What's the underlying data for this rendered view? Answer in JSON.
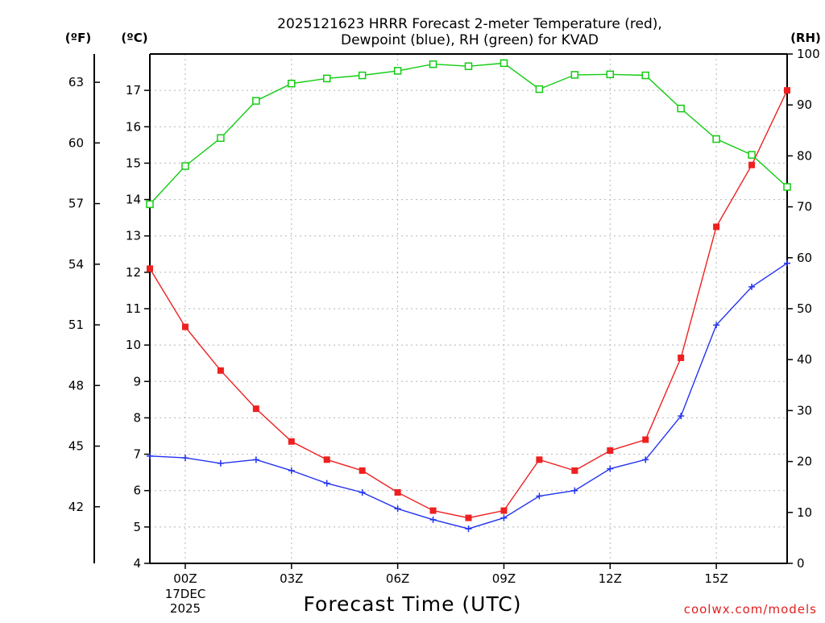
{
  "chart_data": {
    "type": "line",
    "title_line1": "2025121623 HRRR Forecast 2-meter Temperature (red),",
    "title_line2": "Dewpoint (blue), RH (green) for KVAD",
    "xlabel": "Forecast Time (UTC)",
    "credit": "coolwx.com/models",
    "unit_labels": {
      "fahrenheit": "(ºF)",
      "celsius": "(ºC)",
      "rh": "(RH)"
    },
    "date_labels": [
      "17DEC",
      "2025"
    ],
    "x": [
      -1,
      0,
      1,
      2,
      3,
      4,
      5,
      6,
      7,
      8,
      9,
      10,
      11,
      12,
      13,
      14,
      15,
      16,
      17
    ],
    "xlim": [
      -1,
      17
    ],
    "x_ticks": [
      {
        "value": 0,
        "label": "00Z"
      },
      {
        "value": 3,
        "label": "03Z"
      },
      {
        "value": 6,
        "label": "06Z"
      },
      {
        "value": 9,
        "label": "09Z"
      },
      {
        "value": 12,
        "label": "12Z"
      },
      {
        "value": 15,
        "label": "15Z"
      }
    ],
    "celsius_axis": {
      "range": [
        4,
        18
      ],
      "ticks": [
        4,
        5,
        6,
        7,
        8,
        9,
        10,
        11,
        12,
        13,
        14,
        15,
        16,
        17
      ]
    },
    "fahrenheit_axis": {
      "ticks": [
        42,
        45,
        48,
        51,
        54,
        57,
        60,
        63
      ]
    },
    "rh_axis": {
      "range": [
        0,
        100
      ],
      "ticks": [
        0,
        10,
        20,
        30,
        40,
        50,
        60,
        70,
        80,
        90,
        100
      ]
    },
    "series": [
      {
        "name": "Temperature",
        "axis": "celsius",
        "color": "#ee2020",
        "marker": "filled-square",
        "values": [
          12.1,
          10.5,
          9.3,
          8.25,
          7.35,
          6.85,
          6.55,
          5.95,
          5.45,
          5.25,
          5.45,
          6.85,
          6.55,
          7.1,
          7.4,
          9.65,
          13.25,
          14.95,
          17.0
        ]
      },
      {
        "name": "Dewpoint",
        "axis": "celsius",
        "color": "#2233ee",
        "marker": "plus",
        "values": [
          6.95,
          6.9,
          6.75,
          6.85,
          6.55,
          6.2,
          5.95,
          5.5,
          5.2,
          4.95,
          5.25,
          5.85,
          6.0,
          6.6,
          6.85,
          8.05,
          10.55,
          11.6,
          12.25
        ]
      },
      {
        "name": "RH",
        "axis": "rh",
        "color": "#11cc11",
        "marker": "open-square",
        "values": [
          70.5,
          78.0,
          83.5,
          90.8,
          94.2,
          95.2,
          95.8,
          96.7,
          98.0,
          97.6,
          98.2,
          93.1,
          95.9,
          96.0,
          95.8,
          89.3,
          83.3,
          80.2,
          73.9
        ]
      }
    ]
  }
}
